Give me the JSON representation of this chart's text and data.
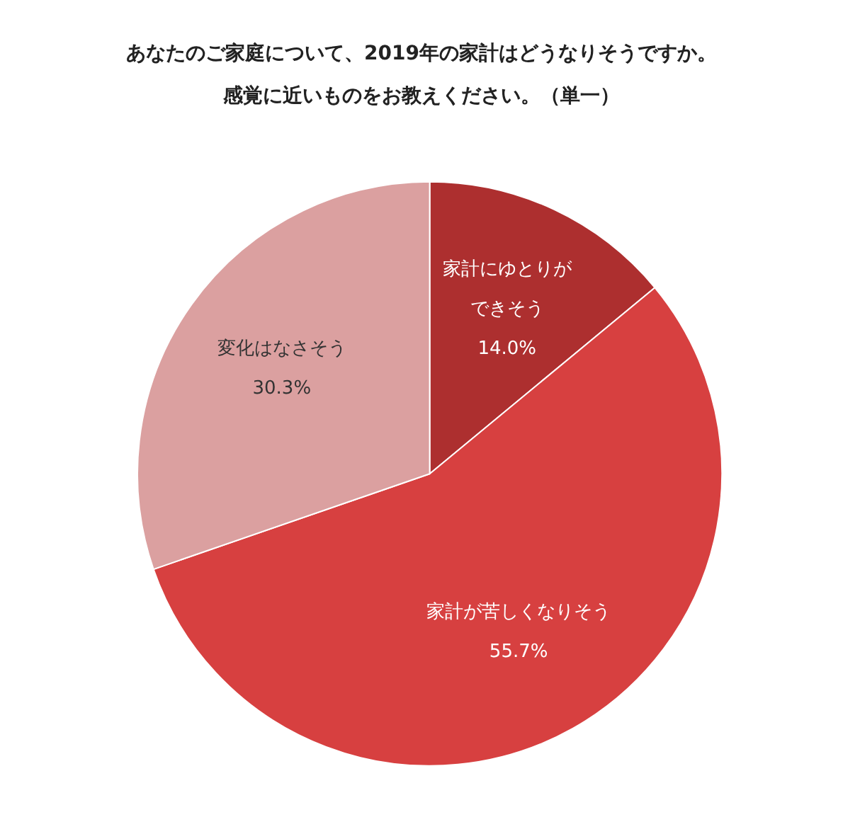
{
  "chart_data": {
    "type": "pie",
    "title": "あなたのご家庭について、2019年の家計はどうなりそうですか。",
    "subtitle": "感覚に近いものをお教えください。（単一）",
    "categories": [
      "家計にゆとりができそう",
      "家計が苦しくなりそう",
      "変化はなさそう"
    ],
    "values": [
      14.0,
      55.7,
      30.3
    ],
    "colors": [
      "#ad2f2f",
      "#d74040",
      "#dba0a0"
    ],
    "value_labels": [
      "14.0%",
      "55.7%",
      "30.3%"
    ],
    "legend": false
  }
}
